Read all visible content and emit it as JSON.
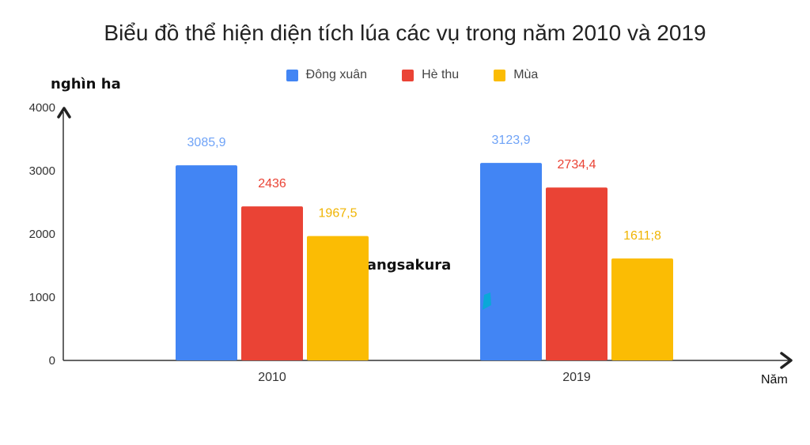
{
  "chart_data": {
    "type": "bar",
    "title": "Biểu đồ thể hiện diện tích lúa các vụ trong năm 2010 và 2019",
    "ylabel": "nghìn ha",
    "xlabel": "Năm",
    "categories": [
      "2010",
      "2019"
    ],
    "ylim": [
      0,
      4000
    ],
    "yticks": [
      "0",
      "1000",
      "2000",
      "3000",
      "4000"
    ],
    "legend_position": "top",
    "grid": false,
    "series": [
      {
        "name": "Đông xuân",
        "values": [
          3085.9,
          3123.9
        ],
        "labels": [
          "3085,9",
          "3123,9"
        ],
        "color": "#4285f4"
      },
      {
        "name": "Hè thu",
        "values": [
          2436,
          2734.4
        ],
        "labels": [
          "2436",
          "2734,4"
        ],
        "color": "#ea4335"
      },
      {
        "name": "Mùa",
        "values": [
          1967.5,
          1611.8
        ],
        "labels": [
          "1967,5",
          "1611;8"
        ],
        "color": "#fbbc04"
      }
    ]
  },
  "watermark_text": "hangsakura"
}
